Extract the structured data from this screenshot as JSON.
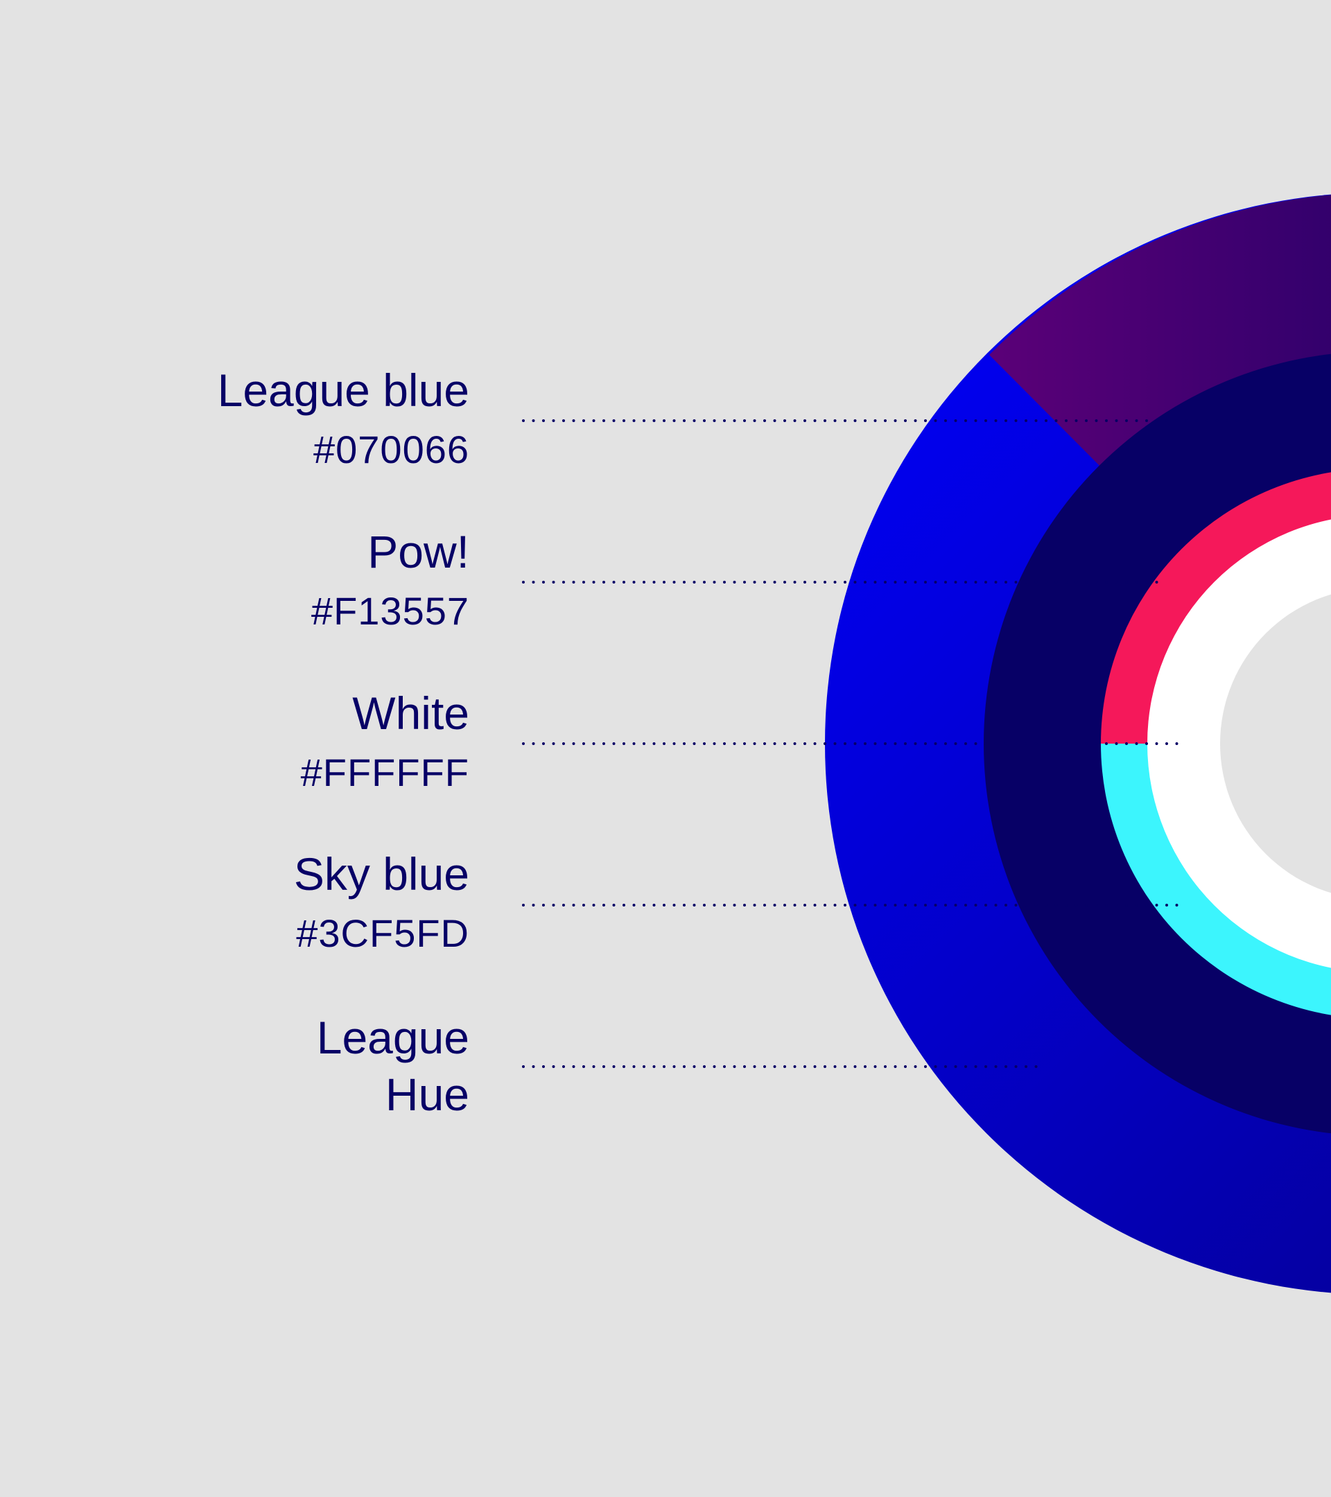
{
  "swatches": [
    {
      "name": "League blue",
      "hex": "#070066",
      "color": "#070066"
    },
    {
      "name": "Pow!",
      "hex": "#F13557",
      "color": "#F13557"
    },
    {
      "name": "White",
      "hex": "#FFFFFF",
      "color": "#FFFFFF"
    },
    {
      "name": "Sky blue",
      "hex": "#3CF5FD",
      "color": "#3CF5FD"
    },
    {
      "name": "League Hue",
      "color_start": "#0000FF",
      "color_end": "#070066"
    }
  ],
  "colors": {
    "background": "#E3E3E3",
    "purple_segment_start": "#5B0078",
    "purple_segment_end": "#2E006B",
    "text": "#070066",
    "dots": "#070066"
  }
}
